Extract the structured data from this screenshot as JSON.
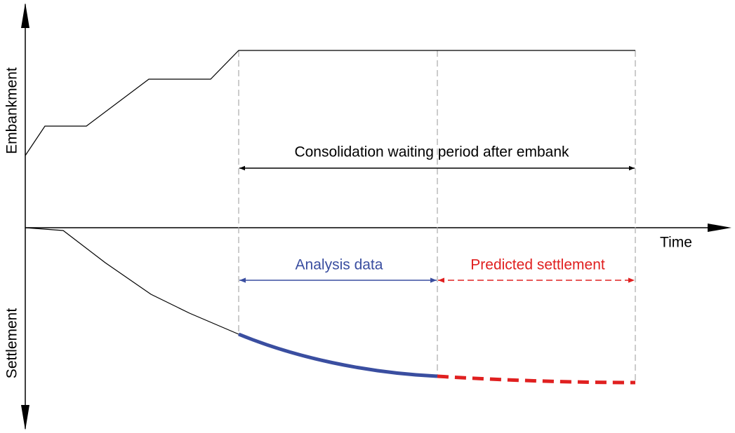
{
  "axes": {
    "y_top_label": "Embankment",
    "y_bottom_label": "Settlement",
    "x_label": "Time"
  },
  "annotations": {
    "waiting_period": "Consolidation waiting period after embank",
    "analysis": "Analysis data",
    "prediction": "Predicted settlement"
  }
}
